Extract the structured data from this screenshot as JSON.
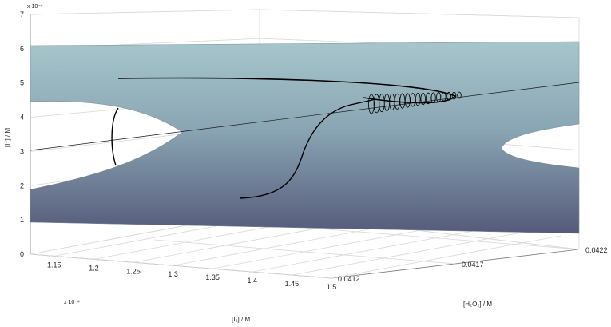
{
  "chart_data": {
    "type": "surface3d",
    "title": "",
    "z_axis": {
      "label": "[I⁻] / M",
      "ticks": [
        "0",
        "1",
        "2",
        "3",
        "4",
        "5",
        "6",
        "7"
      ],
      "exponent": "x 10⁻⁶",
      "range": [
        0,
        7
      ]
    },
    "x_axis": {
      "label": "[I₂] / M",
      "ticks": [
        "1.15",
        "1.2",
        "1.25",
        "1.3",
        "1.35",
        "1.4",
        "1.45",
        "1.5"
      ],
      "exponent": "x 10⁻⁴",
      "range": [
        1.12,
        1.5
      ]
    },
    "y_axis": {
      "label": "[H₂O₂] / M",
      "ticks": [
        "0.0412",
        "0.0417",
        "0.0422"
      ],
      "range": [
        0.0412,
        0.0422
      ]
    },
    "surface_color_top": "#a7c6cb",
    "surface_color_bottom": "#565a7a",
    "grid": true,
    "trajectories": 2
  }
}
